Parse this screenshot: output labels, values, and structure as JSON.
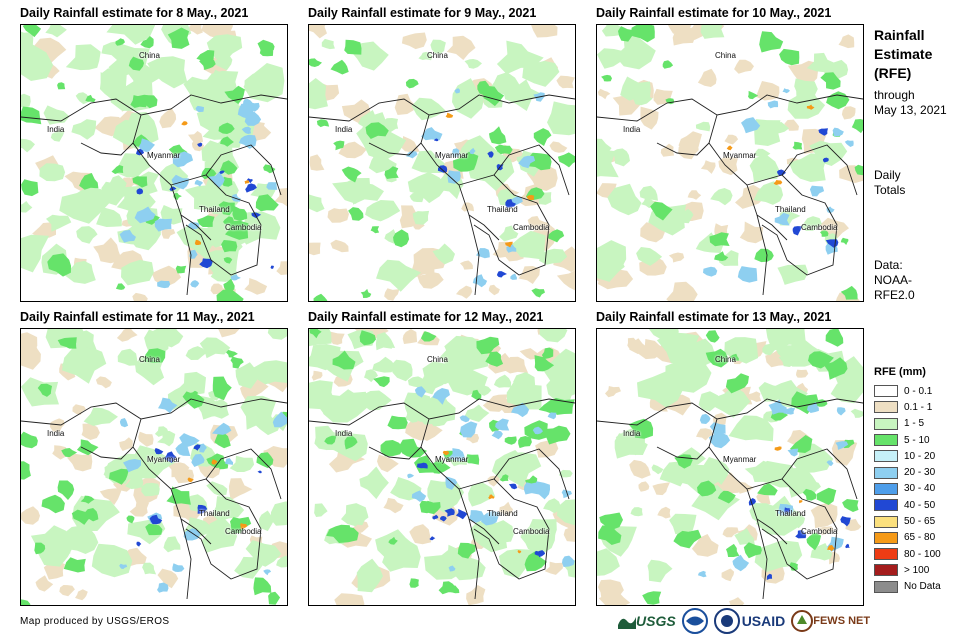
{
  "panels": [
    {
      "title": "Daily Rainfall estimate for 8 May., 2021"
    },
    {
      "title": "Daily Rainfall estimate for 9 May., 2021"
    },
    {
      "title": "Daily Rainfall estimate for 10 May., 2021"
    },
    {
      "title": "Daily Rainfall estimate for 11 May., 2021"
    },
    {
      "title": "Daily Rainfall estimate for 12 May., 2021"
    },
    {
      "title": "Daily Rainfall estimate for 13 May., 2021"
    }
  ],
  "map_labels": {
    "china": "China",
    "india": "India",
    "myanmar": "Myanmar",
    "thailand": "Thailand",
    "cambodia": "Cambodia"
  },
  "sidebar": {
    "title_line1": "Rainfall",
    "title_line2": "Estimate",
    "title_line3": "(RFE)",
    "through": "through",
    "date": "May 13, 2021",
    "daily": "Daily",
    "totals": "Totals",
    "data_label": "Data:",
    "data_source1": "NOAA-",
    "data_source2": "RFE2.0"
  },
  "legend": {
    "title": "RFE (mm)",
    "items": [
      {
        "label": "0 - 0.1",
        "color": "#ffffff"
      },
      {
        "label": "0.1 - 1",
        "color": "#eedfc3"
      },
      {
        "label": "1 - 5",
        "color": "#c8f5c0"
      },
      {
        "label": "5 - 10",
        "color": "#66e36a"
      },
      {
        "label": "10 - 20",
        "color": "#c6f0f8"
      },
      {
        "label": "20 - 30",
        "color": "#8ecff0"
      },
      {
        "label": "30 - 40",
        "color": "#4e9eea"
      },
      {
        "label": "40 - 50",
        "color": "#2148d4"
      },
      {
        "label": "50 - 65",
        "color": "#fbe07e"
      },
      {
        "label": "65 - 80",
        "color": "#f59a18"
      },
      {
        "label": "80 - 100",
        "color": "#ee3c14"
      },
      {
        "label": "> 100",
        "color": "#a41c1c"
      },
      {
        "label": "No Data",
        "color": "#8c8c8c"
      }
    ]
  },
  "footer": {
    "credit": "Map produced by USGS/EROS",
    "logo_usgs": "USGS",
    "logo_usaid": "USAID",
    "logo_fews": "FEWS NET"
  }
}
